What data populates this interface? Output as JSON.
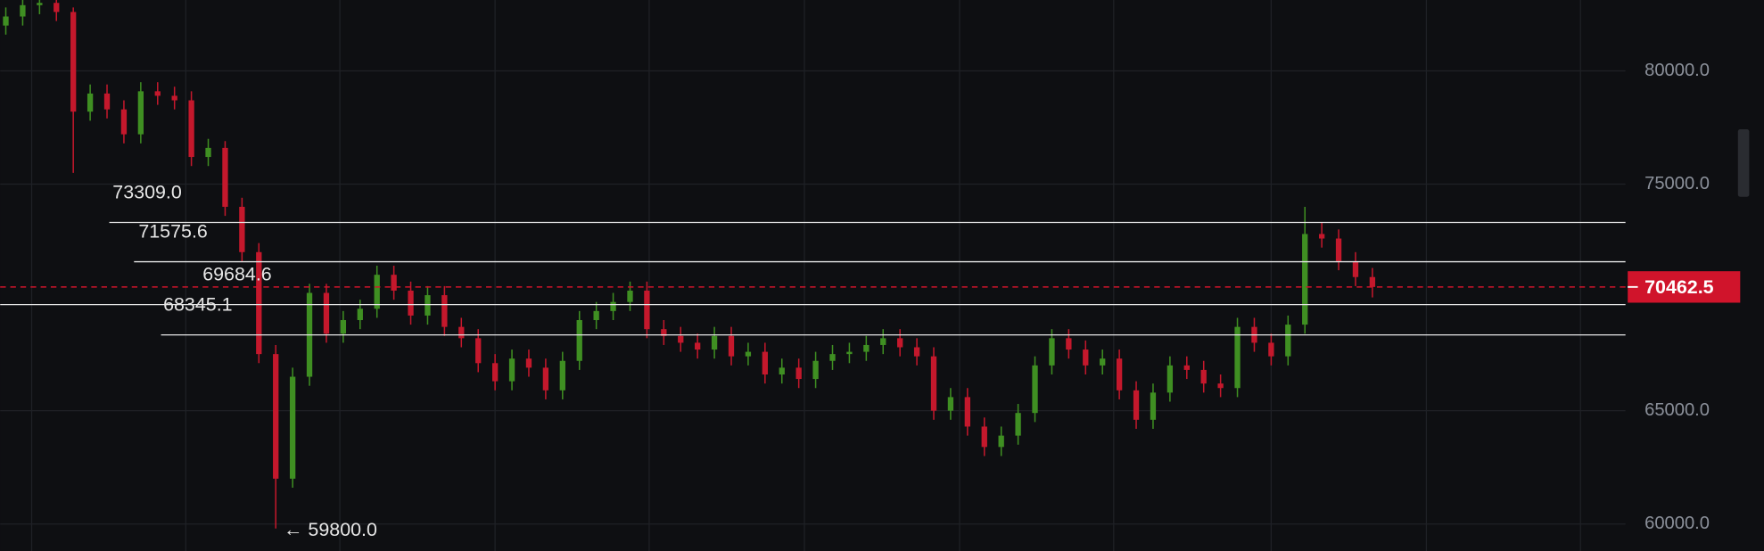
{
  "chart_data": {
    "type": "candlestick",
    "up_color": "#3f8f22",
    "down_color": "#c4182c",
    "level_color": "#e8e8e8",
    "price_color": "#d0142b",
    "open": [
      82000,
      82400,
      82900,
      83000,
      82600,
      78200,
      79000,
      78300,
      77200,
      79100,
      78900,
      78700,
      76200,
      76600,
      74000,
      72000,
      67500,
      62000,
      66500,
      70200,
      68400,
      69000,
      69500,
      71000,
      70300,
      69200,
      70100,
      68700,
      68200,
      67100,
      66300,
      67300,
      66900,
      65900,
      67200,
      69000,
      69400,
      69800,
      70300,
      68600,
      68300,
      68000,
      67700,
      68300,
      67400,
      67600,
      66600,
      66900,
      66400,
      67200,
      67500,
      67600,
      67900,
      68200,
      67800,
      67400,
      65000,
      65600,
      64300,
      63400,
      63900,
      64900,
      67000,
      68200,
      67700,
      67000,
      67300,
      65900,
      64600,
      65800,
      67000,
      66800,
      66200,
      66000,
      68700,
      68000,
      67400,
      68800,
      72800,
      72600,
      71600,
      70900
    ],
    "high": [
      82800,
      83300,
      83400,
      83400,
      82800,
      79400,
      79400,
      78700,
      79500,
      79500,
      79300,
      79100,
      77000,
      76900,
      74400,
      72400,
      67900,
      66900,
      70600,
      70600,
      69400,
      69900,
      71400,
      71400,
      70700,
      70500,
      70500,
      69100,
      68600,
      67500,
      67700,
      67700,
      67300,
      67600,
      69400,
      69800,
      70200,
      70700,
      70700,
      69000,
      68700,
      68400,
      68700,
      68700,
      68000,
      68000,
      67300,
      67300,
      67600,
      67900,
      68000,
      68300,
      68600,
      68600,
      68200,
      67800,
      66000,
      66000,
      64700,
      64300,
      65300,
      67400,
      68600,
      68600,
      68100,
      67700,
      67700,
      66300,
      66200,
      67400,
      67400,
      67200,
      66600,
      69100,
      69100,
      68400,
      69200,
      74000,
      73300,
      73000,
      72000,
      71300
    ],
    "low": [
      81600,
      82000,
      82500,
      82200,
      75500,
      77800,
      77900,
      76800,
      76800,
      78500,
      78300,
      75800,
      75800,
      73600,
      71600,
      67100,
      59800,
      61600,
      66100,
      68000,
      68000,
      68600,
      69100,
      69900,
      68800,
      68800,
      68300,
      67800,
      66700,
      65900,
      65900,
      66500,
      65500,
      65500,
      66800,
      68600,
      69000,
      69400,
      68200,
      67900,
      67600,
      67300,
      67300,
      67000,
      67000,
      66200,
      66200,
      66000,
      66000,
      66800,
      67100,
      67200,
      67500,
      67400,
      67000,
      64600,
      64600,
      63900,
      63000,
      63000,
      63500,
      64500,
      66600,
      67300,
      66600,
      66600,
      65500,
      64200,
      64200,
      65400,
      66400,
      65800,
      65600,
      65600,
      67600,
      67000,
      67000,
      68400,
      72200,
      71200,
      70500,
      70000
    ],
    "close": [
      82400,
      82900,
      83000,
      82600,
      78200,
      79000,
      78300,
      77200,
      79100,
      78900,
      78700,
      76200,
      76600,
      74000,
      72000,
      67500,
      62000,
      66500,
      70200,
      68400,
      69000,
      69500,
      71000,
      70300,
      69200,
      70100,
      68700,
      68200,
      67100,
      66300,
      67300,
      66900,
      65900,
      67200,
      69000,
      69400,
      69800,
      70300,
      68600,
      68300,
      68000,
      67700,
      68300,
      67400,
      67600,
      66600,
      66900,
      66400,
      67200,
      67500,
      67600,
      67900,
      68200,
      67800,
      67400,
      65000,
      65600,
      64300,
      63400,
      63900,
      64900,
      67000,
      68200,
      67700,
      67000,
      67300,
      65900,
      64600,
      65800,
      67000,
      66800,
      66200,
      66000,
      68700,
      68000,
      67400,
      68800,
      72800,
      72600,
      71600,
      70900,
      70462.5
    ],
    "ylim": [
      58808,
      83128
    ],
    "yticks": [
      {
        "value": 60000,
        "label": "60000.0"
      },
      {
        "value": 65000,
        "label": "65000.0"
      },
      {
        "value": 75000,
        "label": "75000.0"
      },
      {
        "value": 80000,
        "label": "80000.0"
      }
    ],
    "grid": true,
    "levels": [
      {
        "value": 73309,
        "label": "73309.0"
      },
      {
        "value": 71575.6,
        "label": "71575.6"
      },
      {
        "value": 69684.6,
        "label": "69684.6"
      },
      {
        "value": 68345.1,
        "label": "68345.1"
      }
    ],
    "current_price": 70462.5,
    "low_annotation": {
      "value": 59800,
      "label": "← 59800.0"
    }
  }
}
